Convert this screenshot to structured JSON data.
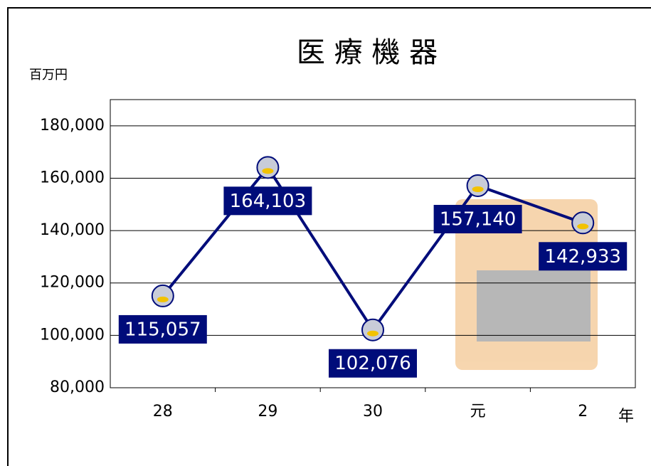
{
  "chart_data": {
    "type": "line",
    "title": "医 療 機 器",
    "y_unit": "百万円",
    "x_unit": "年",
    "categories": [
      "28",
      "29",
      "30",
      "元",
      "2"
    ],
    "series": [
      {
        "name": "医療機器",
        "color": "#000c7a",
        "values": [
          115057,
          164103,
          102076,
          157140,
          142933
        ],
        "value_labels": [
          "115,057",
          "164,103",
          "102,076",
          "157,140",
          "142,933"
        ]
      }
    ],
    "ylim": [
      80000,
      190000
    ],
    "yticks": [
      {
        "value": 80000,
        "label": "80,000"
      },
      {
        "value": 100000,
        "label": "100,000"
      },
      {
        "value": 120000,
        "label": "120,000"
      },
      {
        "value": 140000,
        "label": "140,000"
      },
      {
        "value": 160000,
        "label": "160,000"
      },
      {
        "value": 180000,
        "label": "180,000"
      }
    ],
    "grid": true
  }
}
